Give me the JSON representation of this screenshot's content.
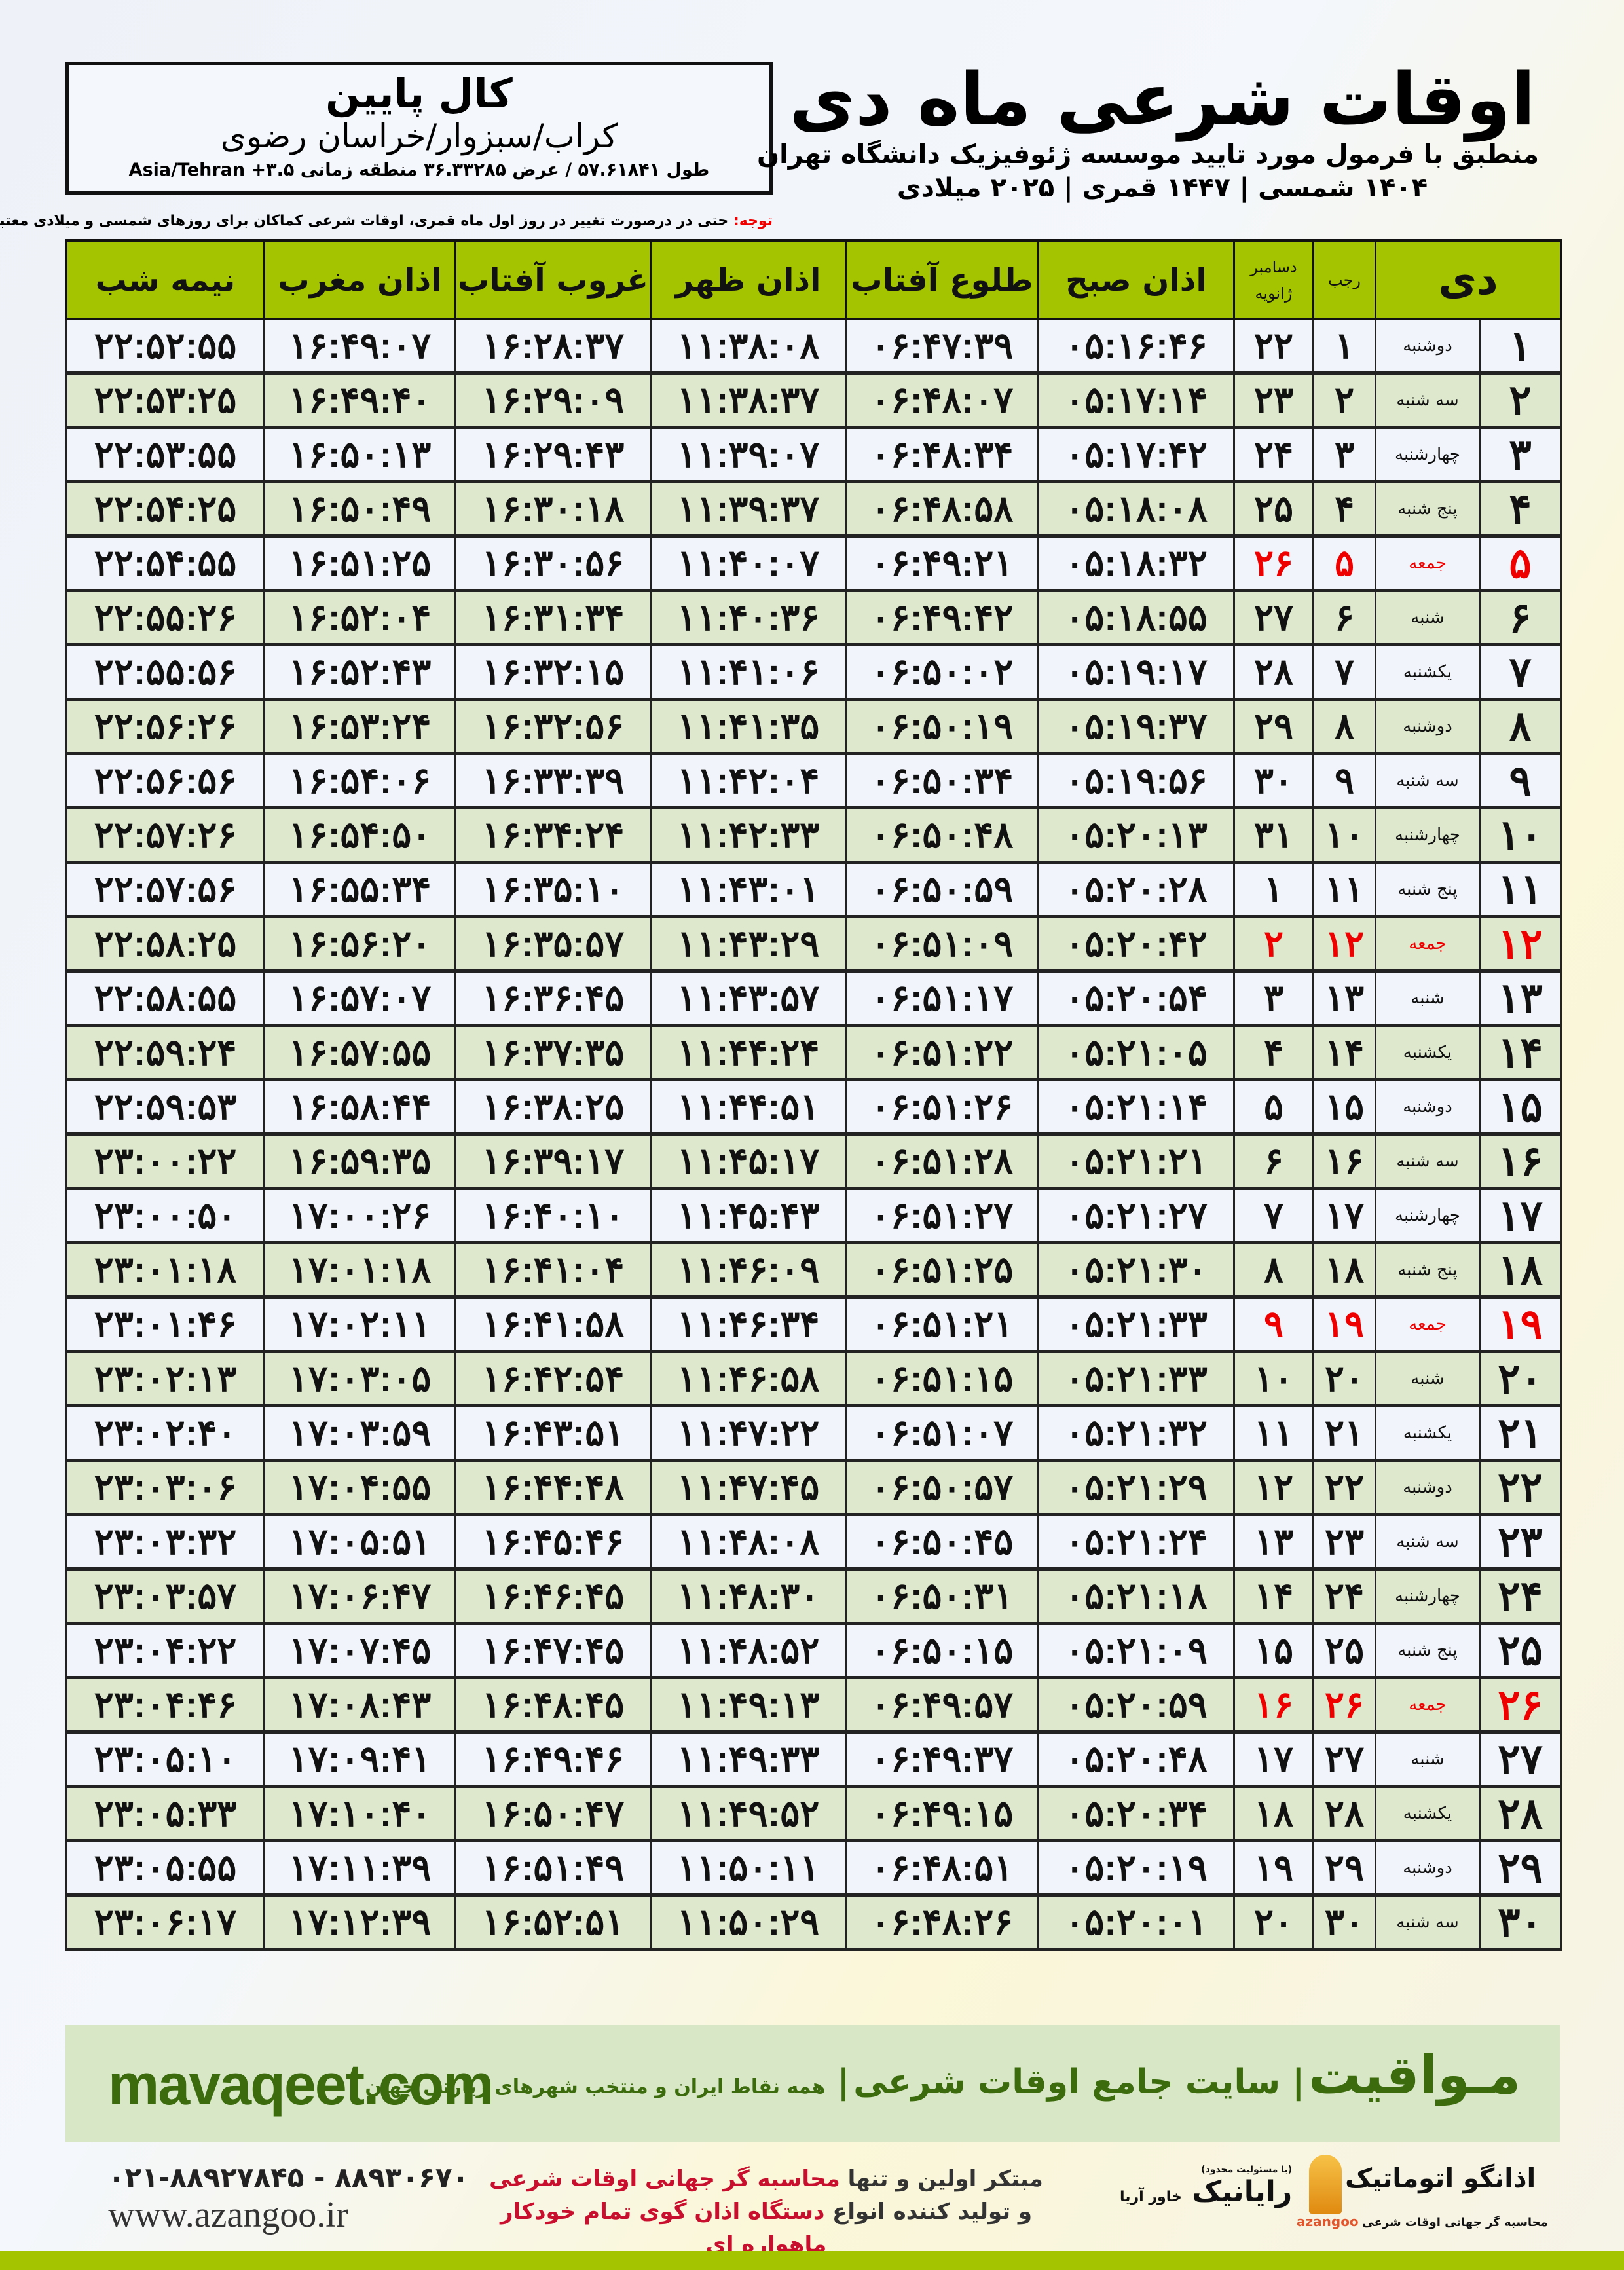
{
  "location": {
    "city": "کال پایین",
    "path": "کراب/سبزوار/خراسان رضوی",
    "coords": "طول ۵۷.۶۱۸۴۱ / عرض ۳۶.۳۳۲۸۵ منطقه زمانی ۳.۵+ Asia/Tehran"
  },
  "header": {
    "title": "اوقات شرعی ماه دی",
    "subtitle": "منطبق با فرمول مورد تایید موسسه ژئوفیزیک دانشگاه تهران",
    "dates": "۱۴۰۴ شمسی | ۱۴۴۷ قمری | ۲۰۲۵ میلادی"
  },
  "note": {
    "label": "توجه:",
    "text": " حتی در درصورت تغییر در روز اول ماه قمری، اوقات شرعی کماکان برای روزهای شمسی و میلادی معتبر است."
  },
  "table": {
    "headers": {
      "month": "دی",
      "rajab": "رجب",
      "december": "دسامبر",
      "january": "ژانویه",
      "fajr": "اذان صبح",
      "sunrise": "طلوع آفتاب",
      "dhuhr": "اذان ظهر",
      "sunset": "غروب آفتاب",
      "maghrib": "اذان مغرب",
      "midnight": "نیمه شب"
    },
    "friday_color": "#e00000",
    "rows": [
      [
        "۱",
        "دوشنبه",
        "۱",
        "۲۲",
        "۰۵:۱۶:۴۶",
        "۰۶:۴۷:۳۹",
        "۱۱:۳۸:۰۸",
        "۱۶:۲۸:۳۷",
        "۱۶:۴۹:۰۷",
        "۲۲:۵۲:۵۵"
      ],
      [
        "۲",
        "سه شنبه",
        "۲",
        "۲۳",
        "۰۵:۱۷:۱۴",
        "۰۶:۴۸:۰۷",
        "۱۱:۳۸:۳۷",
        "۱۶:۲۹:۰۹",
        "۱۶:۴۹:۴۰",
        "۲۲:۵۳:۲۵"
      ],
      [
        "۳",
        "چهارشنبه",
        "۳",
        "۲۴",
        "۰۵:۱۷:۴۲",
        "۰۶:۴۸:۳۴",
        "۱۱:۳۹:۰۷",
        "۱۶:۲۹:۴۳",
        "۱۶:۵۰:۱۳",
        "۲۲:۵۳:۵۵"
      ],
      [
        "۴",
        "پنج شنبه",
        "۴",
        "۲۵",
        "۰۵:۱۸:۰۸",
        "۰۶:۴۸:۵۸",
        "۱۱:۳۹:۳۷",
        "۱۶:۳۰:۱۸",
        "۱۶:۵۰:۴۹",
        "۲۲:۵۴:۲۵"
      ],
      [
        "۵",
        "جمعه",
        "۵",
        "۲۶",
        "۰۵:۱۸:۳۲",
        "۰۶:۴۹:۲۱",
        "۱۱:۴۰:۰۷",
        "۱۶:۳۰:۵۶",
        "۱۶:۵۱:۲۵",
        "۲۲:۵۴:۵۵"
      ],
      [
        "۶",
        "شنبه",
        "۶",
        "۲۷",
        "۰۵:۱۸:۵۵",
        "۰۶:۴۹:۴۲",
        "۱۱:۴۰:۳۶",
        "۱۶:۳۱:۳۴",
        "۱۶:۵۲:۰۴",
        "۲۲:۵۵:۲۶"
      ],
      [
        "۷",
        "یکشنبه",
        "۷",
        "۲۸",
        "۰۵:۱۹:۱۷",
        "۰۶:۵۰:۰۲",
        "۱۱:۴۱:۰۶",
        "۱۶:۳۲:۱۵",
        "۱۶:۵۲:۴۳",
        "۲۲:۵۵:۵۶"
      ],
      [
        "۸",
        "دوشنبه",
        "۸",
        "۲۹",
        "۰۵:۱۹:۳۷",
        "۰۶:۵۰:۱۹",
        "۱۱:۴۱:۳۵",
        "۱۶:۳۲:۵۶",
        "۱۶:۵۳:۲۴",
        "۲۲:۵۶:۲۶"
      ],
      [
        "۹",
        "سه شنبه",
        "۹",
        "۳۰",
        "۰۵:۱۹:۵۶",
        "۰۶:۵۰:۳۴",
        "۱۱:۴۲:۰۴",
        "۱۶:۳۳:۳۹",
        "۱۶:۵۴:۰۶",
        "۲۲:۵۶:۵۶"
      ],
      [
        "۱۰",
        "چهارشنبه",
        "۱۰",
        "۳۱",
        "۰۵:۲۰:۱۳",
        "۰۶:۵۰:۴۸",
        "۱۱:۴۲:۳۳",
        "۱۶:۳۴:۲۴",
        "۱۶:۵۴:۵۰",
        "۲۲:۵۷:۲۶"
      ],
      [
        "۱۱",
        "پنج شنبه",
        "۱۱",
        "۱",
        "۰۵:۲۰:۲۸",
        "۰۶:۵۰:۵۹",
        "۱۱:۴۳:۰۱",
        "۱۶:۳۵:۱۰",
        "۱۶:۵۵:۳۴",
        "۲۲:۵۷:۵۶"
      ],
      [
        "۱۲",
        "جمعه",
        "۱۲",
        "۲",
        "۰۵:۲۰:۴۲",
        "۰۶:۵۱:۰۹",
        "۱۱:۴۳:۲۹",
        "۱۶:۳۵:۵۷",
        "۱۶:۵۶:۲۰",
        "۲۲:۵۸:۲۵"
      ],
      [
        "۱۳",
        "شنبه",
        "۱۳",
        "۳",
        "۰۵:۲۰:۵۴",
        "۰۶:۵۱:۱۷",
        "۱۱:۴۳:۵۷",
        "۱۶:۳۶:۴۵",
        "۱۶:۵۷:۰۷",
        "۲۲:۵۸:۵۵"
      ],
      [
        "۱۴",
        "یکشنبه",
        "۱۴",
        "۴",
        "۰۵:۲۱:۰۵",
        "۰۶:۵۱:۲۲",
        "۱۱:۴۴:۲۴",
        "۱۶:۳۷:۳۵",
        "۱۶:۵۷:۵۵",
        "۲۲:۵۹:۲۴"
      ],
      [
        "۱۵",
        "دوشنبه",
        "۱۵",
        "۵",
        "۰۵:۲۱:۱۴",
        "۰۶:۵۱:۲۶",
        "۱۱:۴۴:۵۱",
        "۱۶:۳۸:۲۵",
        "۱۶:۵۸:۴۴",
        "۲۲:۵۹:۵۳"
      ],
      [
        "۱۶",
        "سه شنبه",
        "۱۶",
        "۶",
        "۰۵:۲۱:۲۱",
        "۰۶:۵۱:۲۸",
        "۱۱:۴۵:۱۷",
        "۱۶:۳۹:۱۷",
        "۱۶:۵۹:۳۵",
        "۲۳:۰۰:۲۲"
      ],
      [
        "۱۷",
        "چهارشنبه",
        "۱۷",
        "۷",
        "۰۵:۲۱:۲۷",
        "۰۶:۵۱:۲۷",
        "۱۱:۴۵:۴۳",
        "۱۶:۴۰:۱۰",
        "۱۷:۰۰:۲۶",
        "۲۳:۰۰:۵۰"
      ],
      [
        "۱۸",
        "پنج شنبه",
        "۱۸",
        "۸",
        "۰۵:۲۱:۳۰",
        "۰۶:۵۱:۲۵",
        "۱۱:۴۶:۰۹",
        "۱۶:۴۱:۰۴",
        "۱۷:۰۱:۱۸",
        "۲۳:۰۱:۱۸"
      ],
      [
        "۱۹",
        "جمعه",
        "۱۹",
        "۹",
        "۰۵:۲۱:۳۳",
        "۰۶:۵۱:۲۱",
        "۱۱:۴۶:۳۴",
        "۱۶:۴۱:۵۸",
        "۱۷:۰۲:۱۱",
        "۲۳:۰۱:۴۶"
      ],
      [
        "۲۰",
        "شنبه",
        "۲۰",
        "۱۰",
        "۰۵:۲۱:۳۳",
        "۰۶:۵۱:۱۵",
        "۱۱:۴۶:۵۸",
        "۱۶:۴۲:۵۴",
        "۱۷:۰۳:۰۵",
        "۲۳:۰۲:۱۳"
      ],
      [
        "۲۱",
        "یکشنبه",
        "۲۱",
        "۱۱",
        "۰۵:۲۱:۳۲",
        "۰۶:۵۱:۰۷",
        "۱۱:۴۷:۲۲",
        "۱۶:۴۳:۵۱",
        "۱۷:۰۳:۵۹",
        "۲۳:۰۲:۴۰"
      ],
      [
        "۲۲",
        "دوشنبه",
        "۲۲",
        "۱۲",
        "۰۵:۲۱:۲۹",
        "۰۶:۵۰:۵۷",
        "۱۱:۴۷:۴۵",
        "۱۶:۴۴:۴۸",
        "۱۷:۰۴:۵۵",
        "۲۳:۰۳:۰۶"
      ],
      [
        "۲۳",
        "سه شنبه",
        "۲۳",
        "۱۳",
        "۰۵:۲۱:۲۴",
        "۰۶:۵۰:۴۵",
        "۱۱:۴۸:۰۸",
        "۱۶:۴۵:۴۶",
        "۱۷:۰۵:۵۱",
        "۲۳:۰۳:۳۲"
      ],
      [
        "۲۴",
        "چهارشنبه",
        "۲۴",
        "۱۴",
        "۰۵:۲۱:۱۸",
        "۰۶:۵۰:۳۱",
        "۱۱:۴۸:۳۰",
        "۱۶:۴۶:۴۵",
        "۱۷:۰۶:۴۷",
        "۲۳:۰۳:۵۷"
      ],
      [
        "۲۵",
        "پنج شنبه",
        "۲۵",
        "۱۵",
        "۰۵:۲۱:۰۹",
        "۰۶:۵۰:۱۵",
        "۱۱:۴۸:۵۲",
        "۱۶:۴۷:۴۵",
        "۱۷:۰۷:۴۵",
        "۲۳:۰۴:۲۲"
      ],
      [
        "۲۶",
        "جمعه",
        "۲۶",
        "۱۶",
        "۰۵:۲۰:۵۹",
        "۰۶:۴۹:۵۷",
        "۱۱:۴۹:۱۳",
        "۱۶:۴۸:۴۵",
        "۱۷:۰۸:۴۳",
        "۲۳:۰۴:۴۶"
      ],
      [
        "۲۷",
        "شنبه",
        "۲۷",
        "۱۷",
        "۰۵:۲۰:۴۸",
        "۰۶:۴۹:۳۷",
        "۱۱:۴۹:۳۳",
        "۱۶:۴۹:۴۶",
        "۱۷:۰۹:۴۱",
        "۲۳:۰۵:۱۰"
      ],
      [
        "۲۸",
        "یکشنبه",
        "۲۸",
        "۱۸",
        "۰۵:۲۰:۳۴",
        "۰۶:۴۹:۱۵",
        "۱۱:۴۹:۵۲",
        "۱۶:۵۰:۴۷",
        "۱۷:۱۰:۴۰",
        "۲۳:۰۵:۳۳"
      ],
      [
        "۲۹",
        "دوشنبه",
        "۲۹",
        "۱۹",
        "۰۵:۲۰:۱۹",
        "۰۶:۴۸:۵۱",
        "۱۱:۵۰:۱۱",
        "۱۶:۵۱:۴۹",
        "۱۷:۱۱:۳۹",
        "۲۳:۰۵:۵۵"
      ],
      [
        "۳۰",
        "سه شنبه",
        "۳۰",
        "۲۰",
        "۰۵:۲۰:۰۱",
        "۰۶:۴۸:۲۶",
        "۱۱:۵۰:۲۹",
        "۱۶:۵۲:۵۱",
        "۱۷:۱۲:۳۹",
        "۲۳:۰۶:۱۷"
      ]
    ]
  },
  "footer": {
    "site": "mavaqeet.com",
    "brand": "مـواقیت",
    "tagline": "سایت جامع اوقات شرعی",
    "tagline_sub": "همه نقاط ایران و منتخب شهرهای زیارتی جهان",
    "phone": "۰۲۱-۸۸۹۲۷۸۴۵ - ۸۸۹۳۰۶۷۰",
    "www": "www.azangoo.ir",
    "promo1a": "مبتکر اولین و تنها ",
    "promo1b": "محاسبه گر جهانی اوقات شرعی",
    "promo2a": "و تولید کننده انواع ",
    "promo2b": "دستگاه اذان گوی تمام خودکار ماهواره ای",
    "logo1_small": "(با مسئولیت محدود)",
    "logo1_name": "رایانیک",
    "logo1_sub": "خاور آریا",
    "logo2_name": "اذانگو اتوماتیک",
    "logo2_sub": "محاسبه گر جهانی اوقات شرعی",
    "logo2_latin": "azangoo",
    "accent": "#a4c400",
    "brand_green": "#3b6b0c",
    "promo_red": "#c8102e"
  }
}
